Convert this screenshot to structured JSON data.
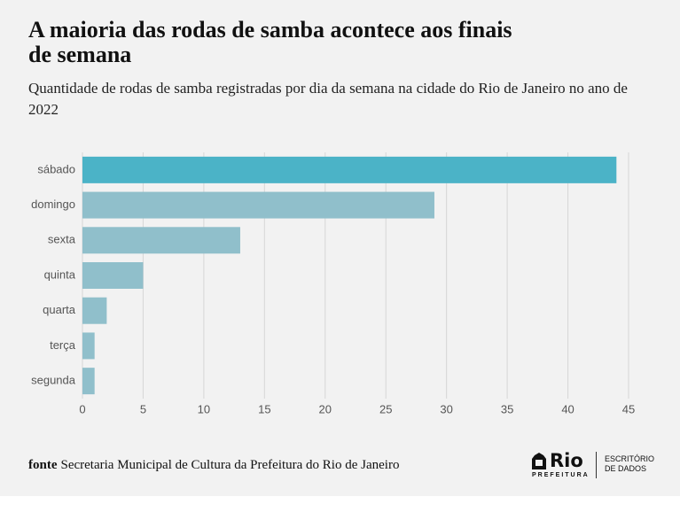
{
  "chart_data": {
    "type": "bar",
    "orientation": "horizontal",
    "title": "A maioria das rodas de samba acontece aos finais de semana",
    "subtitle": "Quantidade de rodas de samba registradas por dia da semana na cidade do Rio de Janeiro no ano de 2022",
    "categories": [
      "sábado",
      "domingo",
      "sexta",
      "quinta",
      "quarta",
      "terça",
      "segunda"
    ],
    "values": [
      44,
      29,
      13,
      5,
      2,
      1,
      1
    ],
    "colors": [
      "#4bb3c7",
      "#90bfcb",
      "#90bfcb",
      "#90bfcb",
      "#90bfcb",
      "#90bfcb",
      "#90bfcb"
    ],
    "xlim": [
      0,
      45
    ],
    "xticks": [
      0,
      5,
      10,
      15,
      20,
      25,
      30,
      35,
      40,
      45
    ],
    "grid": true
  },
  "footer": {
    "source_label": "fonte",
    "source": "Secretaria Municipal de Cultura da Prefeitura do Rio de Janeiro",
    "logo_name": "Rio",
    "logo_sub": "PREFEITURA",
    "office": "ESCRITÓRIO DE DADOS"
  }
}
